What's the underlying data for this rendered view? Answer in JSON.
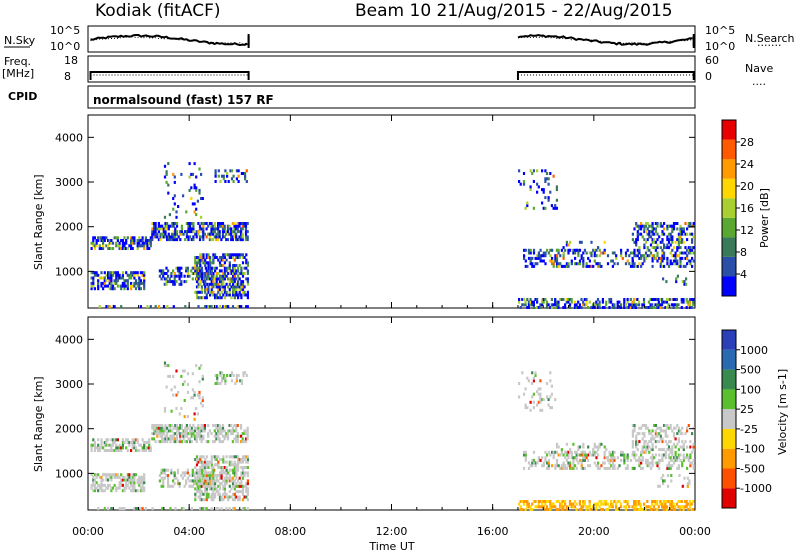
{
  "header": {
    "title_left": "Kodiak (fitACF)",
    "title_right": "Beam 10 21/Aug/2015 - 22/Aug/2015"
  },
  "noise_panel": {
    "left_label": "N.Sky",
    "right_label": "N.Search",
    "left_ticks": [
      "10^5",
      "10^0"
    ],
    "right_ticks": [
      "10^5",
      "10^0"
    ]
  },
  "freq_panel": {
    "left_label_line1": "Freq.",
    "left_label_line2": "[MHz]",
    "left_ticks": [
      "18",
      "8"
    ],
    "right_label": "Nave",
    "right_ticks": [
      "60",
      "0"
    ]
  },
  "cpid_panel": {
    "label": "CPID",
    "text": "normalsound (fast) 157 RF"
  },
  "colors": {
    "power": [
      "#0000ff",
      "#2a4fa8",
      "#3a7a5a",
      "#5aa832",
      "#a8d030",
      "#ffd700",
      "#ff9a00",
      "#ff5a00",
      "#e80000"
    ],
    "velocity": [
      "#2a3fb8",
      "#2a6ab0",
      "#3a8a50",
      "#5ac030",
      "#c8c8c8",
      "#ffd700",
      "#ff9a00",
      "#ff5000",
      "#e00000"
    ],
    "ground_scatter": "#a8a8a8"
  },
  "chart_data": [
    {
      "type": "heatmap",
      "name": "power",
      "xlabel": "",
      "ylabel": "Slant Range [km]",
      "colorbar_label": "Power [dB]",
      "colorbar_ticks": [
        "28",
        "24",
        "20",
        "16",
        "12",
        "8",
        "4"
      ],
      "yticks": [
        "4000",
        "3000",
        "2000",
        "1000"
      ],
      "ylim": [
        180,
        4500
      ],
      "xlim": [
        0,
        24
      ],
      "data_gaps_ut_hours": [
        [
          6.35,
          17.0
        ]
      ]
    },
    {
      "type": "heatmap",
      "name": "velocity",
      "xlabel": "Time UT",
      "ylabel": "Slant Range [km]",
      "colorbar_label": "Velocity [m s-1]",
      "colorbar_ticks": [
        "1000",
        "500",
        "100",
        "25",
        "-25",
        "-100",
        "-500",
        "-1000"
      ],
      "yticks": [
        "4000",
        "3000",
        "2000",
        "1000"
      ],
      "xticks": [
        "00:00",
        "04:00",
        "08:00",
        "12:00",
        "16:00",
        "20:00",
        "00:00"
      ],
      "ylim": [
        180,
        4500
      ],
      "xlim": [
        0,
        24
      ]
    }
  ]
}
